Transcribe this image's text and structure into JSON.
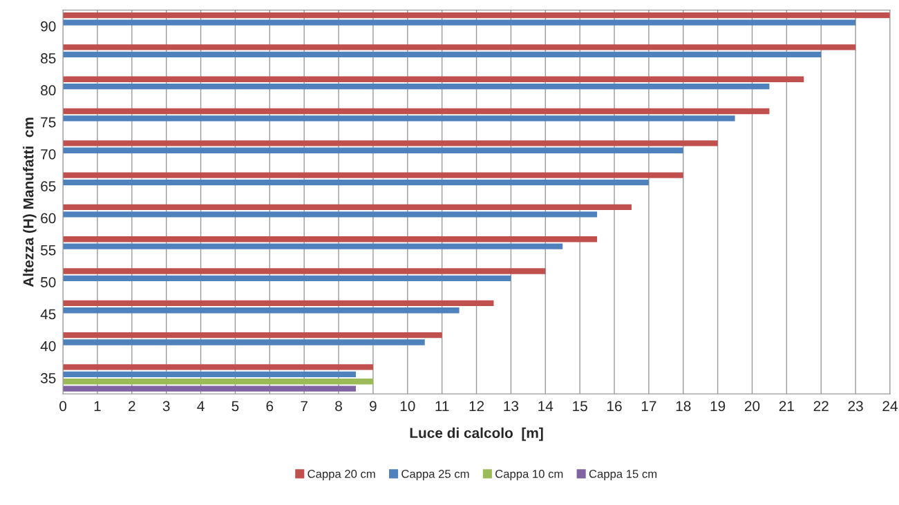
{
  "chart_data": {
    "type": "bar",
    "orientation": "horizontal",
    "xlabel": "Luce di calcolo  [m]",
    "ylabel": "Altezza (H) Manufatti  cm",
    "categories": [
      "90",
      "85",
      "80",
      "75",
      "70",
      "65",
      "60",
      "55",
      "50",
      "45",
      "40",
      "35"
    ],
    "series": [
      {
        "name": "Cappa 20 cm",
        "color": "#c0504d",
        "values": [
          24,
          23,
          21.5,
          20.5,
          19,
          18,
          16.5,
          15.5,
          14,
          12.5,
          11,
          9
        ]
      },
      {
        "name": "Cappa 25 cm",
        "color": "#4f81bd",
        "values": [
          23,
          22,
          20.5,
          19.5,
          18,
          17,
          15.5,
          14.5,
          13,
          11.5,
          10.5,
          8.5
        ]
      },
      {
        "name": "Cappa 10 cm",
        "color": "#9bbb59",
        "values": [
          null,
          null,
          null,
          null,
          null,
          null,
          null,
          null,
          null,
          null,
          null,
          9
        ]
      },
      {
        "name": "Cappa 15 cm",
        "color": "#8064a2",
        "values": [
          null,
          null,
          null,
          null,
          null,
          null,
          null,
          null,
          null,
          null,
          null,
          8.5
        ]
      }
    ],
    "xlim": [
      0,
      24
    ],
    "xticks": [
      0,
      1,
      2,
      3,
      4,
      5,
      6,
      7,
      8,
      9,
      10,
      11,
      12,
      13,
      14,
      15,
      16,
      17,
      18,
      19,
      20,
      21,
      22,
      23,
      24
    ],
    "grid": "x",
    "legend": "bottom"
  }
}
